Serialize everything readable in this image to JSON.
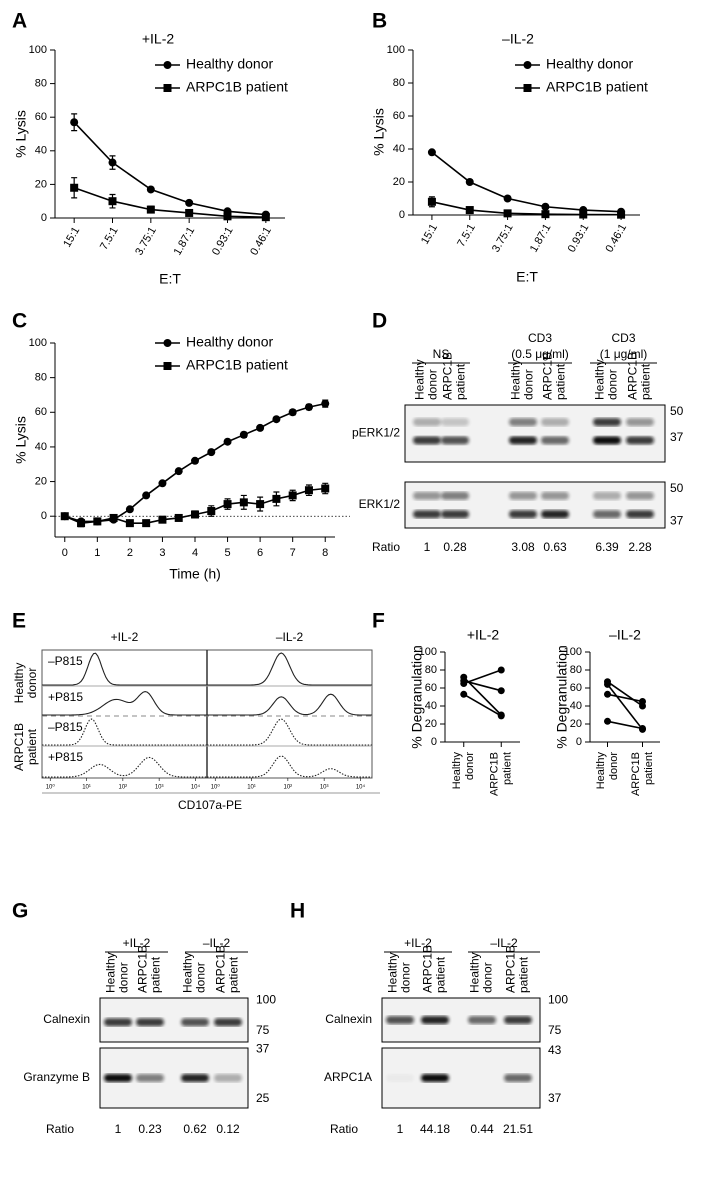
{
  "chart_data": [
    {
      "type": "line",
      "label": "A",
      "title": "+IL-2",
      "y_label": "% Lysis",
      "x_label": "E:T",
      "categories": [
        "15:1",
        "7.5:1",
        "3.75:1",
        "1.87:1",
        "0.93:1",
        "0.46:1"
      ],
      "series": [
        {
          "name": "Healthy donor",
          "color": "#000000",
          "marker": "circle",
          "values": [
            57,
            33,
            17,
            9,
            4,
            2
          ],
          "errors": [
            5,
            4,
            1,
            1,
            1,
            1
          ]
        },
        {
          "name": "ARPC1B patient",
          "color": "#000000",
          "marker": "square",
          "values": [
            18,
            10,
            5,
            3,
            1,
            0.5
          ],
          "errors": [
            6,
            4,
            2,
            1,
            1,
            0.5
          ]
        }
      ],
      "ylim": [
        0,
        100
      ],
      "yticks": [
        0,
        20,
        40,
        60,
        80,
        100
      ]
    },
    {
      "type": "line",
      "label": "B",
      "title": "–IL-2",
      "y_label": "% Lysis",
      "x_label": "E:T",
      "categories": [
        "15:1",
        "7.5:1",
        "3.75:1",
        "1.87:1",
        "0.93:1",
        "0.46:1"
      ],
      "series": [
        {
          "name": "Healthy donor",
          "color": "#000000",
          "marker": "circle",
          "values": [
            38,
            20,
            10,
            5,
            3,
            2
          ],
          "errors": [
            1,
            1,
            1,
            1,
            0.5,
            0.5
          ]
        },
        {
          "name": "ARPC1B patient",
          "color": "#000000",
          "marker": "square",
          "values": [
            8,
            3,
            1,
            0.5,
            0.3,
            0.2
          ],
          "errors": [
            3,
            1,
            1,
            0.5,
            0.3,
            0.2
          ]
        }
      ],
      "ylim": [
        0,
        100
      ],
      "yticks": [
        0,
        20,
        40,
        60,
        80,
        100
      ]
    },
    {
      "type": "line",
      "label": "C",
      "y_label": "% Lysis",
      "x_label": "Time (h)",
      "zero_line": true,
      "x": [
        0,
        0.5,
        1,
        1.5,
        2,
        2.5,
        3,
        3.5,
        4,
        4.5,
        5,
        5.5,
        6,
        6.5,
        7,
        7.5,
        8
      ],
      "series": [
        {
          "name": "Healthy donor",
          "color": "#000000",
          "marker": "circle",
          "values": [
            0,
            -3,
            -3,
            -2,
            4,
            12,
            19,
            26,
            32,
            37,
            43,
            47,
            51,
            56,
            60,
            63,
            65
          ],
          "errors": [
            1,
            1,
            1,
            1,
            1,
            1,
            1,
            1,
            1,
            1,
            1,
            1.5,
            1,
            1,
            1.5,
            1.5,
            2
          ]
        },
        {
          "name": "ARPC1B patient",
          "color": "#000000",
          "marker": "square",
          "values": [
            0,
            -4,
            -3,
            -1,
            -4,
            -4,
            -2,
            -1,
            1,
            3,
            7,
            8,
            7,
            10,
            12,
            15,
            16
          ],
          "errors": [
            1,
            2,
            1,
            1,
            1,
            1,
            1,
            1,
            2,
            3,
            3,
            4,
            4,
            4,
            3,
            3,
            3
          ]
        }
      ],
      "xlim": [
        -0.3,
        8.3
      ],
      "xticks": [
        0,
        1,
        2,
        3,
        4,
        5,
        6,
        7,
        8
      ],
      "ylim": [
        -12,
        100
      ],
      "yticks": [
        0,
        20,
        40,
        60,
        80,
        100
      ]
    },
    {
      "type": "line",
      "label": "F",
      "title": "+IL-2",
      "y_label": "% Degranulation",
      "categories": [
        [
          "Healthy",
          "donor"
        ],
        [
          "ARPC1B",
          "patient"
        ]
      ],
      "series": [
        {
          "color": "#000000",
          "marker": "circle",
          "values": [
            72,
            30
          ]
        },
        {
          "color": "#000000",
          "marker": "circle",
          "values": [
            65,
            80
          ]
        },
        {
          "color": "#000000",
          "marker": "circle",
          "values": [
            68,
            57
          ]
        },
        {
          "color": "#000000",
          "marker": "circle",
          "values": [
            53,
            29
          ]
        }
      ],
      "ylim": [
        0,
        100
      ],
      "yticks": [
        0,
        20,
        40,
        60,
        80,
        100
      ]
    },
    {
      "type": "line",
      "title": "–IL-2",
      "y_label": "% Degranulation",
      "categories": [
        [
          "Healthy",
          "donor"
        ],
        [
          "ARPC1B",
          "patient"
        ]
      ],
      "series": [
        {
          "color": "#000000",
          "marker": "circle",
          "values": [
            67,
            40
          ]
        },
        {
          "color": "#000000",
          "marker": "circle",
          "values": [
            64,
            14
          ]
        },
        {
          "color": "#000000",
          "marker": "circle",
          "values": [
            53,
            45
          ]
        },
        {
          "color": "#000000",
          "marker": "circle",
          "values": [
            23,
            15
          ]
        }
      ],
      "ylim": [
        0,
        100
      ],
      "yticks": [
        0,
        20,
        40,
        60,
        80,
        100
      ]
    }
  ],
  "blot_D": {
    "label": "D",
    "groups": [
      {
        "lines": [
          "NS"
        ]
      },
      {
        "lines": [
          "CD3",
          "(0.5 μg/ml)"
        ]
      },
      {
        "lines": [
          "CD3",
          "(1 μg/ml)"
        ]
      }
    ],
    "lanes": [
      [
        "Healthy",
        "donor"
      ],
      [
        "ARPC1B",
        "patient"
      ],
      [
        "Healthy",
        "donor"
      ],
      [
        "ARPC1B",
        "patient"
      ],
      [
        "Healthy",
        "donor"
      ],
      [
        "ARPC1B",
        "patient"
      ]
    ],
    "rows": [
      {
        "name": "pERK1/2",
        "markers": [
          50,
          37
        ]
      },
      {
        "name": "ERK1/2",
        "markers": [
          50,
          37
        ]
      }
    ],
    "ratio_label": "Ratio",
    "ratios": [
      1,
      0.28,
      3.08,
      0.63,
      6.39,
      2.28
    ]
  },
  "flow_E": {
    "label": "E",
    "columns": [
      "+IL-2",
      "–IL-2"
    ],
    "groups": [
      {
        "name": [
          "Healthy",
          "donor"
        ],
        "rows": [
          "–P815",
          "+P815"
        ]
      },
      {
        "name": [
          "ARPC1B",
          "patient"
        ],
        "rows": [
          "–P815",
          "+P815"
        ]
      }
    ],
    "x_ticks": [
      "10⁰",
      "10¹",
      "10²",
      "10³",
      "10⁴"
    ],
    "x_label": "CD107a-PE"
  },
  "blot_G": {
    "label": "G",
    "groups": [
      {
        "lines": [
          "+IL-2"
        ]
      },
      {
        "lines": [
          "–IL-2"
        ]
      }
    ],
    "lanes": [
      [
        "Healthy",
        "donor"
      ],
      [
        "ARPC1B",
        "patient"
      ],
      [
        "Healthy",
        "donor"
      ],
      [
        "ARPC1B",
        "patient"
      ]
    ],
    "rows": [
      {
        "name": "Calnexin",
        "markers": [
          100,
          75
        ]
      },
      {
        "name": "Granzyme B",
        "markers": [
          37,
          25
        ]
      }
    ],
    "ratio_label": "Ratio",
    "ratios": [
      1,
      0.23,
      0.62,
      0.12
    ]
  },
  "blot_H": {
    "label": "H",
    "groups": [
      {
        "lines": [
          "+IL-2"
        ]
      },
      {
        "lines": [
          "–IL-2"
        ]
      }
    ],
    "lanes": [
      [
        "Healthy",
        "donor"
      ],
      [
        "ARPC1B",
        "patient"
      ],
      [
        "Healthy",
        "donor"
      ],
      [
        "ARPC1B",
        "patient"
      ]
    ],
    "rows": [
      {
        "name": "Calnexin",
        "markers": [
          100,
          75
        ]
      },
      {
        "name": "ARPC1A",
        "markers": [
          43,
          37
        ]
      }
    ],
    "ratio_label": "Ratio",
    "ratios": [
      1,
      44.18,
      0.44,
      21.51
    ]
  }
}
